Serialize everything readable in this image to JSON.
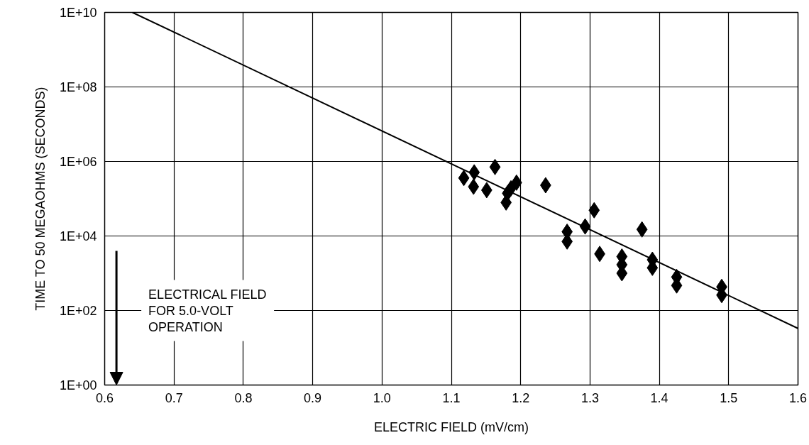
{
  "chart_data": {
    "type": "scatter",
    "xlabel": "ELECTRIC FIELD (mV/cm)",
    "ylabel": "TIME TO 50 MEGAOHMS (SECONDS)",
    "log": "y",
    "grid": true,
    "xlim": [
      0.6,
      1.6
    ],
    "ylim": [
      1,
      10000000000
    ],
    "xticks": [
      0.6,
      0.7,
      0.8,
      0.9,
      {
        "value": 1.0,
        "label": "1.0"
      },
      1.1,
      1.2,
      1.3,
      1.4,
      1.5,
      1.6
    ],
    "yticks": [
      {
        "value": 1,
        "label": "1E+00"
      },
      {
        "value": 100,
        "label": "1E+02"
      },
      {
        "value": 10000,
        "label": "1E+04"
      },
      {
        "value": 1000000,
        "label": "1E+06"
      },
      {
        "value": 100000000,
        "label": "1E+08"
      },
      {
        "value": 10000000000,
        "label": "1E+10"
      }
    ],
    "series": [
      {
        "color": "#000000",
        "marker": "diamond",
        "x": [
          1.118,
          1.133,
          1.132,
          1.151,
          1.163,
          1.194,
          1.186,
          1.181,
          1.179,
          1.236,
          1.306,
          1.293,
          1.267,
          1.267,
          1.314,
          1.346,
          1.346,
          1.346,
          1.375,
          1.39,
          1.39,
          1.425,
          1.425,
          1.49,
          1.49
        ],
        "values": [
          360000,
          510000,
          210000,
          170000,
          710000,
          270000,
          190000,
          140000,
          79000,
          230000,
          49000,
          18000,
          13000,
          7100,
          3300,
          2800,
          1700,
          1000,
          15000,
          2300,
          1400,
          790,
          470,
          430,
          260
        ]
      },
      {
        "type": "line",
        "color": "#000000",
        "line_style": "solid",
        "x": [
          0.64,
          1.6
        ],
        "values": [
          10000000000,
          33
        ]
      }
    ],
    "annotations": [
      "ELECTRICAL FIELD\nFOR 5.0-VOLT\nOPERATION"
    ]
  }
}
